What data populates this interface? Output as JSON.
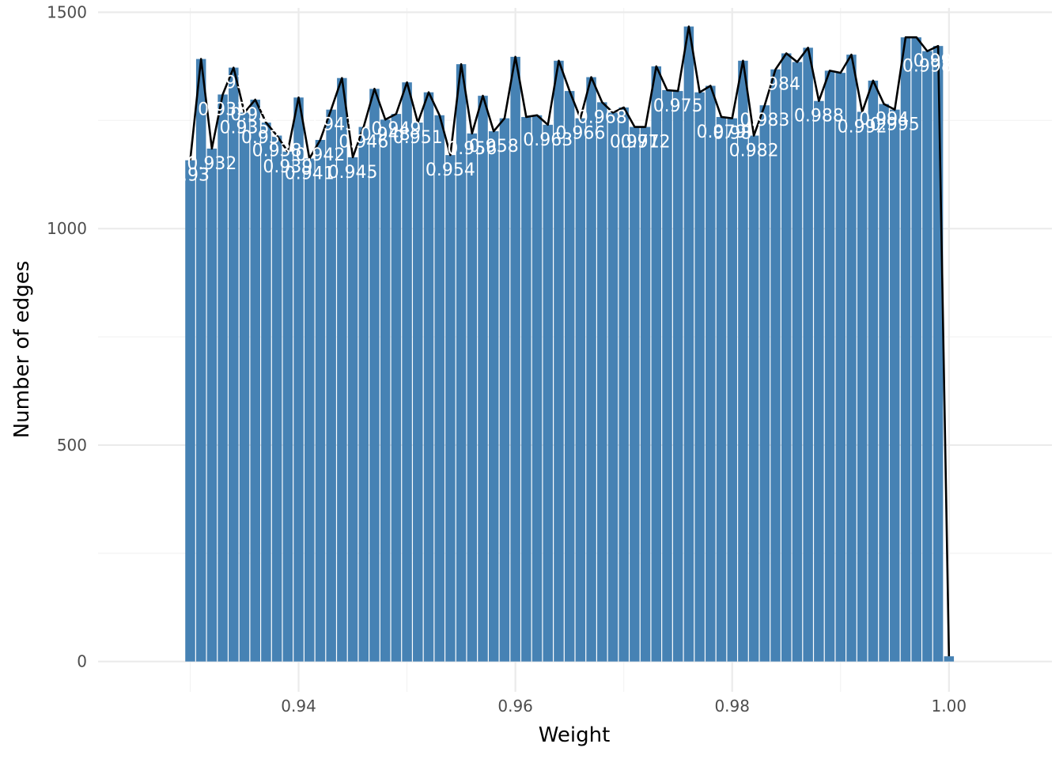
{
  "chart_data": {
    "type": "bar",
    "xlabel": "Weight",
    "ylabel": "Number of edges",
    "xlim": [
      0.9215,
      1.0095
    ],
    "ylim": [
      -70,
      1510
    ],
    "x_ticks": [
      0.94,
      0.96,
      0.98,
      1.0
    ],
    "x_tick_labels": [
      "0.94",
      "0.96",
      "0.98",
      "1.00"
    ],
    "y_ticks": [
      0,
      500,
      1000,
      1500
    ],
    "y_tick_labels": [
      "0",
      "500",
      "1000",
      "1500"
    ],
    "bin_width": 0.001,
    "grid": true,
    "legend": "none",
    "colors": {
      "bar": "#4682b4",
      "line": "#000000",
      "label": "#ffffff",
      "grid": "#ebebeb"
    },
    "x": [
      0.93,
      0.931,
      0.932,
      0.933,
      0.934,
      0.935,
      0.936,
      0.937,
      0.938,
      0.939,
      0.94,
      0.941,
      0.942,
      0.943,
      0.944,
      0.945,
      0.946,
      0.947,
      0.948,
      0.949,
      0.95,
      0.951,
      0.952,
      0.953,
      0.954,
      0.955,
      0.956,
      0.957,
      0.958,
      0.959,
      0.96,
      0.961,
      0.962,
      0.963,
      0.964,
      0.965,
      0.966,
      0.967,
      0.968,
      0.969,
      0.97,
      0.971,
      0.972,
      0.973,
      0.974,
      0.975,
      0.976,
      0.977,
      0.978,
      0.979,
      0.98,
      0.981,
      0.982,
      0.983,
      0.984,
      0.985,
      0.986,
      0.987,
      0.988,
      0.989,
      0.99,
      0.991,
      0.992,
      0.993,
      0.994,
      0.995,
      0.996,
      0.997,
      0.998,
      0.999,
      1.0
    ],
    "values": [
      1158,
      1392,
      1185,
      1310,
      1372,
      1268,
      1298,
      1245,
      1215,
      1178,
      1303,
      1162,
      1205,
      1275,
      1348,
      1165,
      1235,
      1323,
      1252,
      1265,
      1338,
      1245,
      1315,
      1262,
      1170,
      1380,
      1220,
      1307,
      1225,
      1255,
      1397,
      1258,
      1262,
      1240,
      1388,
      1318,
      1255,
      1350,
      1292,
      1268,
      1280,
      1235,
      1235,
      1375,
      1320,
      1318,
      1467,
      1315,
      1330,
      1258,
      1255,
      1388,
      1215,
      1285,
      1368,
      1405,
      1385,
      1418,
      1295,
      1365,
      1360,
      1402,
      1270,
      1342,
      1288,
      1275,
      1442,
      1442,
      1410,
      1422,
      12
    ],
    "bar_labels": [
      {
        "text": "0.93",
        "x": 0.93,
        "y": 1158
      },
      {
        "text": "0.932",
        "x": 0.932,
        "y": 1185
      },
      {
        "text": "0.933",
        "x": 0.933,
        "y": 1310
      },
      {
        "text": "0.934",
        "x": 0.934,
        "y": 1372
      },
      {
        "text": "0.935",
        "x": 0.935,
        "y": 1268
      },
      {
        "text": "0.936",
        "x": 0.936,
        "y": 1298
      },
      {
        "text": "0.937",
        "x": 0.937,
        "y": 1245
      },
      {
        "text": "0.938",
        "x": 0.938,
        "y": 1215
      },
      {
        "text": "0.939",
        "x": 0.939,
        "y": 1178
      },
      {
        "text": "0.941",
        "x": 0.941,
        "y": 1162
      },
      {
        "text": "0.942",
        "x": 0.942,
        "y": 1205
      },
      {
        "text": "0.943",
        "x": 0.943,
        "y": 1275
      },
      {
        "text": "0.945",
        "x": 0.945,
        "y": 1165
      },
      {
        "text": "0.946",
        "x": 0.946,
        "y": 1235
      },
      {
        "text": "0.948",
        "x": 0.948,
        "y": 1252
      },
      {
        "text": "0.949",
        "x": 0.949,
        "y": 1265
      },
      {
        "text": "0.951",
        "x": 0.951,
        "y": 1245
      },
      {
        "text": "0.954",
        "x": 0.954,
        "y": 1170
      },
      {
        "text": "0.956",
        "x": 0.956,
        "y": 1220
      },
      {
        "text": "0.958",
        "x": 0.958,
        "y": 1225
      },
      {
        "text": "0.963",
        "x": 0.963,
        "y": 1240
      },
      {
        "text": "0.966",
        "x": 0.966,
        "y": 1255
      },
      {
        "text": "0.968",
        "x": 0.968,
        "y": 1292
      },
      {
        "text": "0.971",
        "x": 0.971,
        "y": 1235
      },
      {
        "text": "0.972",
        "x": 0.972,
        "y": 1235
      },
      {
        "text": "0.975",
        "x": 0.975,
        "y": 1318
      },
      {
        "text": "0.979",
        "x": 0.979,
        "y": 1258
      },
      {
        "text": "0.98",
        "x": 0.98,
        "y": 1255
      },
      {
        "text": "0.982",
        "x": 0.982,
        "y": 1215
      },
      {
        "text": "0.983",
        "x": 0.983,
        "y": 1285
      },
      {
        "text": "0.984",
        "x": 0.984,
        "y": 1368
      },
      {
        "text": "0.988",
        "x": 0.988,
        "y": 1295
      },
      {
        "text": "0.992",
        "x": 0.992,
        "y": 1270
      },
      {
        "text": "0.994",
        "x": 0.994,
        "y": 1288
      },
      {
        "text": "0.995",
        "x": 0.995,
        "y": 1275
      },
      {
        "text": "0.998",
        "x": 0.998,
        "y": 1410
      },
      {
        "text": "0.999",
        "x": 0.999,
        "y": 1422
      }
    ]
  }
}
